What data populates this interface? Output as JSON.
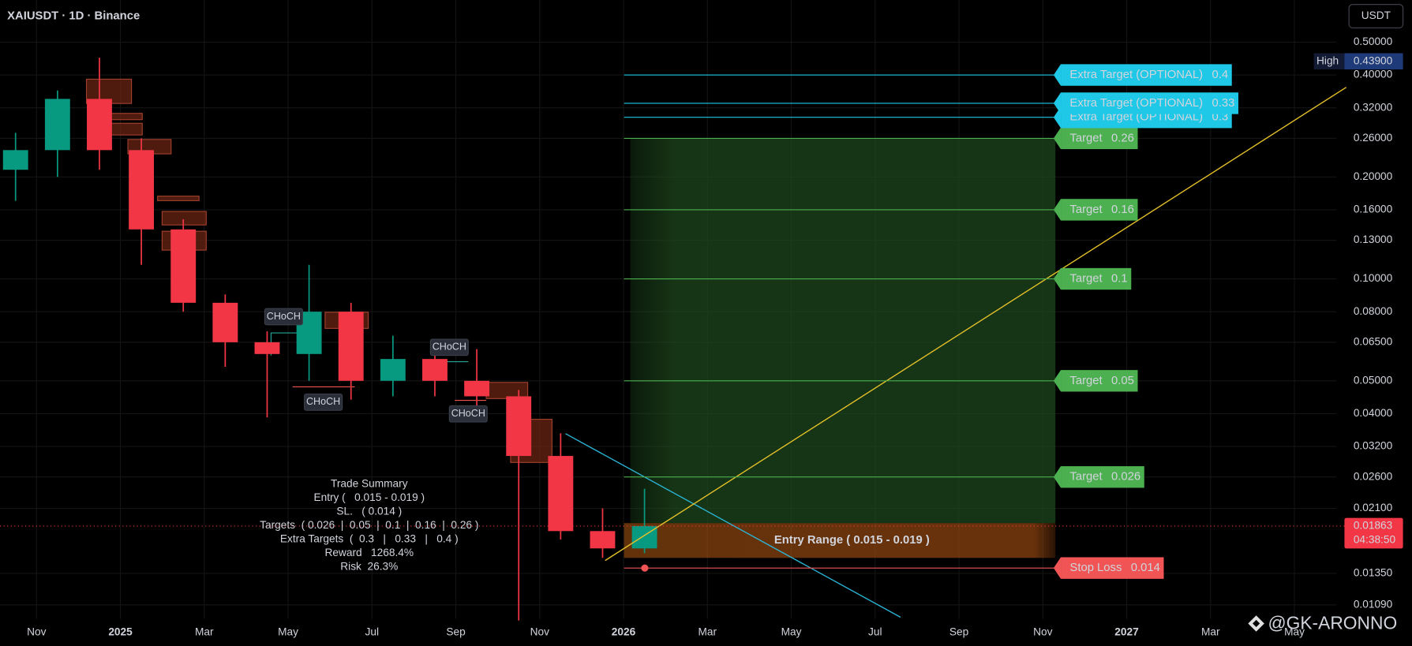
{
  "chart_data": {
    "type": "candlestick",
    "title": "XAIUSDT · 1D · Binance",
    "currency": "USDT",
    "log_scale": true,
    "grid": true,
    "up_color": "#089981",
    "down_color": "#f23645",
    "x": [
      "2024-10",
      "2024-11",
      "2024-12",
      "2025-01",
      "2025-02",
      "2025-03",
      "2025-04",
      "2025-05",
      "2025-06",
      "2025-07",
      "2025-08",
      "2025-09",
      "2025-10",
      "2025-11",
      "2025-12",
      "2026-01"
    ],
    "open": [
      0.21,
      0.24,
      0.34,
      0.24,
      0.14,
      0.085,
      0.065,
      0.06,
      0.08,
      0.05,
      0.058,
      0.05,
      0.045,
      0.03,
      0.018,
      0.016
    ],
    "high": [
      0.27,
      0.36,
      0.45,
      0.26,
      0.15,
      0.09,
      0.07,
      0.11,
      0.085,
      0.068,
      0.065,
      0.062,
      0.047,
      0.035,
      0.021,
      0.024
    ],
    "low": [
      0.17,
      0.2,
      0.21,
      0.11,
      0.08,
      0.055,
      0.039,
      0.05,
      0.044,
      0.045,
      0.045,
      0.042,
      0.0098,
      0.017,
      0.015,
      0.0155
    ],
    "close": [
      0.24,
      0.34,
      0.24,
      0.14,
      0.085,
      0.065,
      0.06,
      0.08,
      0.05,
      0.058,
      0.05,
      0.045,
      0.03,
      0.018,
      0.016,
      0.01863
    ],
    "xlim": [
      "2024-10",
      "2027-06"
    ],
    "xticks": [
      {
        "value": "2024-11",
        "label": "Nov"
      },
      {
        "value": "2025-01",
        "label": "2025"
      },
      {
        "value": "2025-03",
        "label": "Mar"
      },
      {
        "value": "2025-05",
        "label": "May"
      },
      {
        "value": "2025-07",
        "label": "Jul"
      },
      {
        "value": "2025-09",
        "label": "Sep"
      },
      {
        "value": "2025-11",
        "label": "Nov"
      },
      {
        "value": "2026-01",
        "label": "2026"
      },
      {
        "value": "2026-03",
        "label": "Mar"
      },
      {
        "value": "2026-05",
        "label": "May"
      },
      {
        "value": "2026-07",
        "label": "Jul"
      },
      {
        "value": "2026-09",
        "label": "Sep"
      },
      {
        "value": "2026-11",
        "label": "Nov"
      },
      {
        "value": "2027-01",
        "label": "2027"
      },
      {
        "value": "2027-03",
        "label": "Mar"
      },
      {
        "value": "2027-05",
        "label": "May"
      }
    ],
    "ylim": [
      0.0099,
      0.666
    ],
    "yticks": [
      {
        "value": 0.5,
        "label": "0.50000"
      },
      {
        "value": 0.4,
        "label": "0.40000"
      },
      {
        "value": 0.32,
        "label": "0.32000"
      },
      {
        "value": 0.26,
        "label": "0.26000"
      },
      {
        "value": 0.2,
        "label": "0.20000"
      },
      {
        "value": 0.16,
        "label": "0.16000"
      },
      {
        "value": 0.13,
        "label": "0.13000"
      },
      {
        "value": 0.1,
        "label": "0.10000"
      },
      {
        "value": 0.08,
        "label": "0.08000"
      },
      {
        "value": 0.065,
        "label": "0.06500"
      },
      {
        "value": 0.05,
        "label": "0.05000"
      },
      {
        "value": 0.04,
        "label": "0.04000"
      },
      {
        "value": 0.032,
        "label": "0.03200"
      },
      {
        "value": 0.026,
        "label": "0.02600"
      },
      {
        "value": 0.021,
        "label": "0.02100"
      },
      {
        "value": 0.0135,
        "label": "0.01350"
      },
      {
        "value": 0.0109,
        "label": "0.01090"
      }
    ],
    "last_price": {
      "value": 0.01863,
      "countdown": "04:38:50"
    },
    "high_marker": {
      "name": "High",
      "value": 0.439,
      "label": "0.43900"
    },
    "targets": [
      {
        "label": "Target",
        "value": 0.026
      },
      {
        "label": "Target",
        "value": 0.05
      },
      {
        "label": "Target",
        "value": 0.1
      },
      {
        "label": "Target",
        "value": 0.16
      },
      {
        "label": "Target",
        "value": 0.26
      }
    ],
    "extra_targets": [
      {
        "label": "Extra Target (OPTIONAL)",
        "value": 0.4
      },
      {
        "label": "Extra Target (OPTIONAL)",
        "value": 0.33
      },
      {
        "label": "Extra Target (OPTIONAL)",
        "value": 0.3
      }
    ],
    "stop_loss": {
      "label": "Stop Loss",
      "value": 0.014
    },
    "entry_range": {
      "label": "Entry Range ( 0.015 - 0.019 )",
      "low": 0.015,
      "high": 0.019
    },
    "choch_labels": [
      {
        "text": "CHoCH",
        "color": "#26a69a"
      },
      {
        "text": "CHoCH",
        "color": "#ef5350"
      },
      {
        "text": "CHoCH",
        "color": "#26a69a"
      },
      {
        "text": "CHoCH",
        "color": "#ef5350"
      }
    ],
    "trade_summary": [
      "Trade Summary",
      "Entry (   0.015 - 0.019 )",
      "SL.   ( 0.014 )",
      "Targets  ( 0.026  |  0.05  |  0.1  |  0.16  |  0.26 )",
      "Extra Targets  (  0.3   |   0.33   |   0.4 )",
      "Reward   1268.4%",
      "Risk  26.3%"
    ],
    "watermark": "@GK-ARONNO"
  }
}
